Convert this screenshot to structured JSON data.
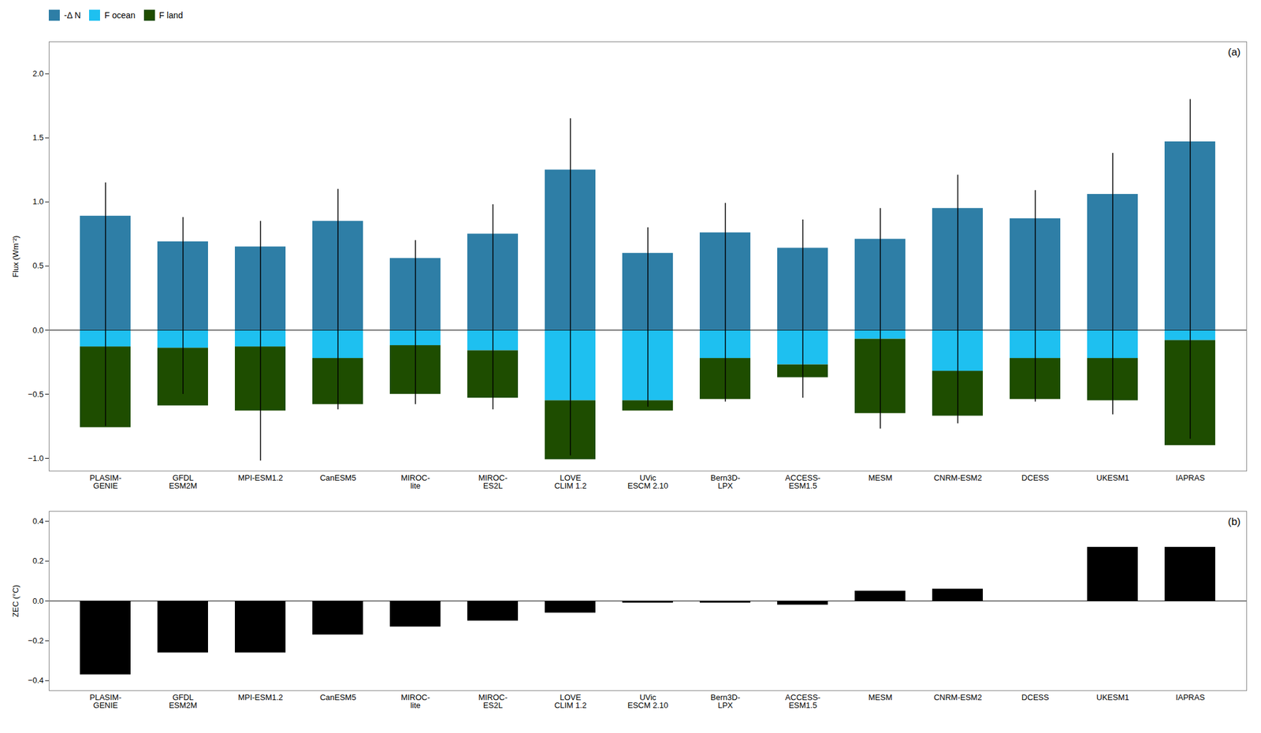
{
  "chart_data": [
    {
      "type": "bar",
      "stacked": true,
      "ylabel": "Flux (Wm⁻²)",
      "annotation": "(a)",
      "legend": "upper left",
      "categories": [
        "PLASIM-\nGENIE",
        "GFDL\nESM2M",
        "MPI-ESM1.2",
        "CanESM5",
        "MIROC-\nlite",
        "MIROC-\nES2L",
        "LOVE\nCLIM 1.2",
        "UVic\nESCM 2.10",
        "Bern3D-\nLPX",
        "ACCESS-\nESM1.5",
        "MESM",
        "CNRM-ESM2",
        "DCESS",
        "UKESM1",
        "IAPRAS"
      ],
      "series": [
        {
          "name": "-Δ N",
          "color": "#2E7EA6",
          "values": [
            0.89,
            0.69,
            0.65,
            0.85,
            0.56,
            0.75,
            1.25,
            0.6,
            0.76,
            0.64,
            0.71,
            0.95,
            0.87,
            1.06,
            1.47
          ],
          "error_low": [
            -0.75,
            -0.5,
            -1.02,
            -0.62,
            -0.58,
            -0.62,
            -0.98,
            -0.6,
            -0.56,
            -0.53,
            -0.77,
            -0.73,
            -0.56,
            -0.66,
            -0.85
          ],
          "error_high": [
            1.15,
            0.88,
            0.85,
            1.1,
            0.7,
            0.98,
            1.65,
            0.8,
            0.99,
            0.86,
            0.95,
            1.21,
            1.09,
            1.38,
            1.8
          ]
        },
        {
          "name": "F ocean",
          "color": "#1EC0F0",
          "values": [
            -0.13,
            -0.14,
            -0.13,
            -0.22,
            -0.12,
            -0.16,
            -0.55,
            -0.55,
            -0.22,
            -0.27,
            -0.07,
            -0.32,
            -0.22,
            -0.22,
            -0.08
          ]
        },
        {
          "name": "F land",
          "color": "#1E4D00",
          "values": [
            -0.63,
            -0.45,
            -0.5,
            -0.36,
            -0.38,
            -0.37,
            -0.46,
            -0.08,
            -0.32,
            -0.1,
            -0.58,
            -0.35,
            -0.32,
            -0.33,
            -0.82
          ]
        }
      ],
      "ylim": [
        -1.1,
        2.25
      ],
      "yticks": [
        {
          "value": -1.0,
          "label": "−1.0"
        },
        {
          "value": -0.5,
          "label": "−0.5"
        },
        {
          "value": 0.0,
          "label": "0.0"
        },
        0.5,
        {
          "value": 1.0,
          "label": "1.0"
        },
        1.5,
        {
          "value": 2.0,
          "label": "2.0"
        }
      ]
    },
    {
      "type": "bar",
      "ylabel": "ZEC (°C)",
      "annotation": "(b)",
      "categories": [
        "PLASIM-\nGENIE",
        "GFDL\nESM2M",
        "MPI-ESM1.2",
        "CanESM5",
        "MIROC-\nlite",
        "MIROC-\nES2L",
        "LOVE\nCLIM 1.2",
        "UVic\nESCM 2.10",
        "Bern3D-\nLPX",
        "ACCESS-\nESM1.5",
        "MESM",
        "CNRM-ESM2",
        "DCESS",
        "UKESM1",
        "IAPRAS"
      ],
      "values": [
        -0.37,
        -0.26,
        -0.26,
        -0.17,
        -0.13,
        -0.1,
        -0.06,
        -0.01,
        -0.01,
        -0.02,
        0.05,
        0.06,
        0.0,
        0.27,
        0.27
      ],
      "color": "#000000",
      "ylim": [
        -0.45,
        0.45
      ],
      "yticks": [
        {
          "value": -0.4,
          "label": "−0.4"
        },
        {
          "value": -0.2,
          "label": "−0.2"
        },
        {
          "value": 0.0,
          "label": "0.0"
        },
        0.2,
        0.4
      ]
    }
  ]
}
